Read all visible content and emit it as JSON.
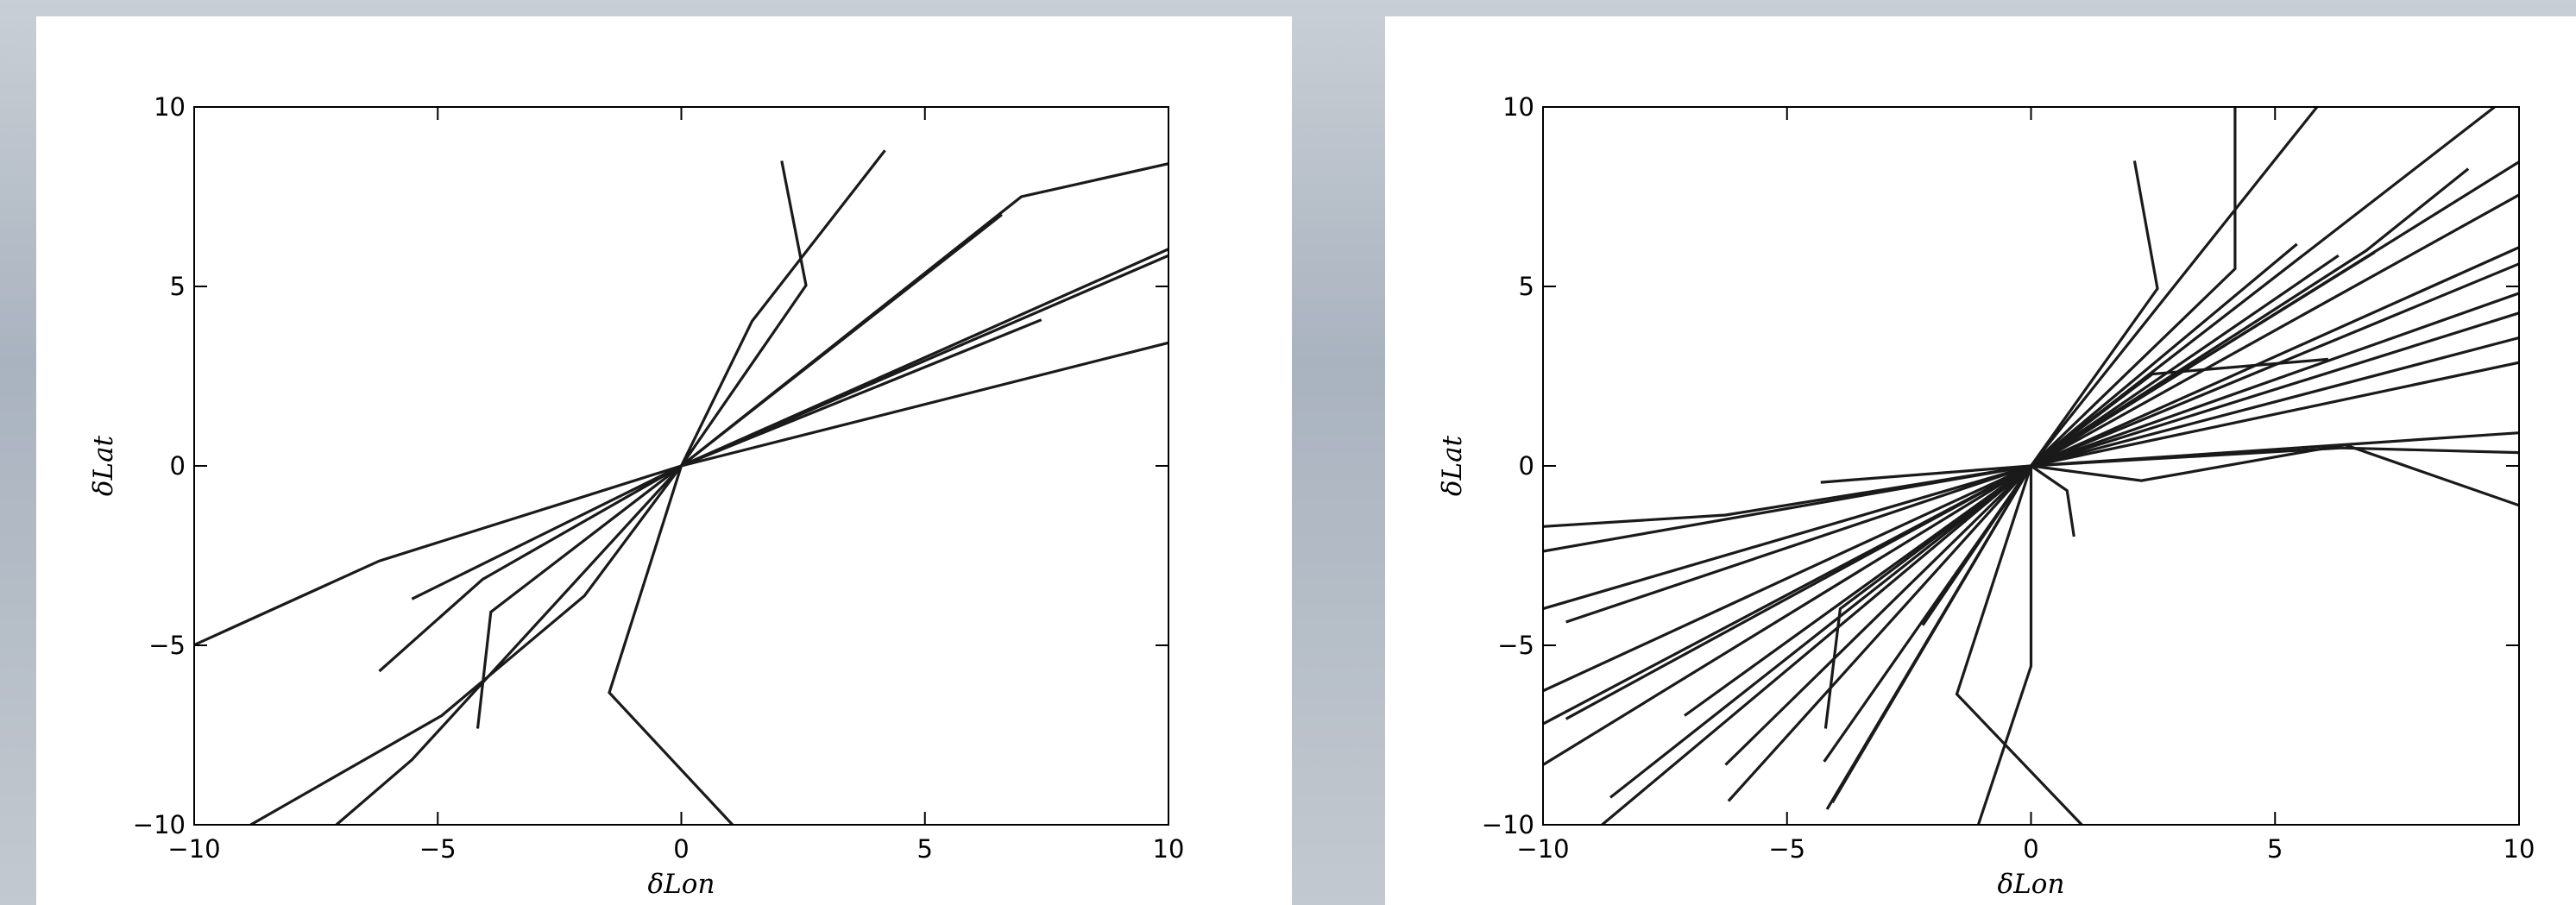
{
  "chart_data": [
    {
      "type": "line",
      "xlabel": "δLon",
      "ylabel": "δLat",
      "color": "#1a1a1a",
      "xlim": [
        -10,
        10
      ],
      "ylim": [
        -10,
        10
      ],
      "xticks": [
        {
          "value": -10,
          "label": "−10"
        },
        {
          "value": -5,
          "label": "−5"
        },
        0,
        5,
        10
      ],
      "yticks": [
        {
          "value": -10,
          "label": "−10"
        },
        {
          "value": -5,
          "label": "−5"
        },
        0,
        5,
        10
      ],
      "series": [
        {
          "x": [
            0,
            2.56,
            2.06
          ],
          "values": [
            0,
            5.03,
            8.5
          ]
        },
        {
          "x": [
            0,
            1.45,
            4.18
          ],
          "values": [
            0,
            4.03,
            8.79
          ]
        },
        {
          "x": [
            0,
            6.98,
            10
          ],
          "values": [
            0,
            7.5,
            8.42
          ]
        },
        {
          "x": [
            0,
            6.58
          ],
          "values": [
            0,
            7.0
          ]
        },
        {
          "x": [
            0,
            10
          ],
          "values": [
            0,
            6.04
          ]
        },
        {
          "x": [
            0,
            10
          ],
          "values": [
            0,
            5.86
          ]
        },
        {
          "x": [
            0,
            7.39
          ],
          "values": [
            0,
            4.07
          ]
        },
        {
          "x": [
            0,
            10
          ],
          "values": [
            0,
            3.43
          ]
        },
        {
          "x": [
            0,
            -6.2,
            -10
          ],
          "values": [
            0,
            -2.65,
            -4.99
          ]
        },
        {
          "x": [
            0,
            -5.53
          ],
          "values": [
            0,
            -3.71
          ]
        },
        {
          "x": [
            0,
            -4.08,
            -6.2
          ],
          "values": [
            0,
            -3.16,
            -5.72
          ]
        },
        {
          "x": [
            0,
            -3.91,
            -4.18
          ],
          "values": [
            0,
            -4.07,
            -7.32
          ]
        },
        {
          "x": [
            0,
            -1.99,
            -4.92,
            -8.84
          ],
          "values": [
            0,
            -3.62,
            -6.96,
            -10
          ]
        },
        {
          "x": [
            0,
            -5.53,
            -7.08
          ],
          "values": [
            0,
            -8.19,
            -10
          ]
        },
        {
          "x": [
            0,
            -1.48,
            1.05
          ],
          "values": [
            0,
            -6.32,
            -10
          ]
        }
      ]
    },
    {
      "type": "line",
      "xlabel": "δLon",
      "ylabel": "δLat",
      "color": "#1a1a1a",
      "xlim": [
        -10,
        10
      ],
      "ylim": [
        -10,
        10
      ],
      "xticks": [
        {
          "value": -10,
          "label": "−10"
        },
        {
          "value": -5,
          "label": "−5"
        },
        0,
        5,
        10
      ],
      "yticks": [
        {
          "value": -10,
          "label": "−10"
        },
        {
          "value": -5,
          "label": "−5"
        },
        0,
        5,
        10
      ],
      "series": [
        {
          "x": [
            0,
            2.59,
            2.12
          ],
          "values": [
            0,
            4.94,
            8.5
          ]
        },
        {
          "x": [
            0,
            4.18,
            4.18
          ],
          "values": [
            0,
            5.49,
            10
          ]
        },
        {
          "x": [
            0,
            4.98,
            5.86
          ],
          "values": [
            0,
            8.5,
            10
          ]
        },
        {
          "x": [
            0,
            9.5
          ],
          "values": [
            0,
            10
          ]
        },
        {
          "x": [
            0,
            10
          ],
          "values": [
            0,
            8.47
          ]
        },
        {
          "x": [
            0,
            10
          ],
          "values": [
            0,
            7.55
          ]
        },
        {
          "x": [
            0,
            10
          ],
          "values": [
            0,
            6.09
          ]
        },
        {
          "x": [
            0,
            10
          ],
          "values": [
            0,
            5.63
          ]
        },
        {
          "x": [
            0,
            10
          ],
          "values": [
            0,
            4.81
          ]
        },
        {
          "x": [
            0,
            10
          ],
          "values": [
            0,
            4.26
          ]
        },
        {
          "x": [
            0,
            10
          ],
          "values": [
            0,
            3.57
          ]
        },
        {
          "x": [
            0,
            10
          ],
          "values": [
            0,
            2.88
          ]
        },
        {
          "x": [
            0,
            6.87,
            8.96
          ],
          "values": [
            0,
            6.0,
            8.28
          ]
        },
        {
          "x": [
            0,
            6.3
          ],
          "values": [
            0,
            5.86
          ]
        },
        {
          "x": [
            0,
            5.45
          ],
          "values": [
            0,
            6.18
          ]
        },
        {
          "x": [
            0,
            7.04
          ],
          "values": [
            0,
            5.95
          ]
        },
        {
          "x": [
            0,
            2.49,
            6.09
          ],
          "values": [
            0,
            2.56,
            2.97
          ]
        },
        {
          "x": [
            0,
            10
          ],
          "values": [
            0,
            0.92
          ]
        },
        {
          "x": [
            0,
            6.36,
            10
          ],
          "values": [
            0,
            0.5,
            0.37
          ]
        },
        {
          "x": [
            0,
            2.26,
            6.43,
            10
          ],
          "values": [
            0,
            -0.41,
            0.59,
            -1.1
          ]
        },
        {
          "x": [
            0,
            0.74,
            0.88
          ],
          "values": [
            0,
            -0.69,
            -1.97
          ]
        },
        {
          "x": [
            0,
            0,
            -1.08
          ],
          "values": [
            0,
            -5.58,
            -10
          ]
        },
        {
          "x": [
            0,
            -1.52,
            1.04
          ],
          "values": [
            0,
            -6.36,
            -10
          ]
        },
        {
          "x": [
            0,
            -4.31
          ],
          "values": [
            0,
            -0.46
          ]
        },
        {
          "x": [
            0,
            -6.26,
            -10
          ],
          "values": [
            0,
            -1.37,
            -1.69
          ]
        },
        {
          "x": [
            0,
            -10
          ],
          "values": [
            0,
            -2.38
          ]
        },
        {
          "x": [
            0,
            -10
          ],
          "values": [
            0,
            -3.98
          ]
        },
        {
          "x": [
            0,
            -9.53
          ],
          "values": [
            0,
            -4.35
          ]
        },
        {
          "x": [
            0,
            -10
          ],
          "values": [
            0,
            -6.27
          ]
        },
        {
          "x": [
            0,
            -10
          ],
          "values": [
            0,
            -7.19
          ]
        },
        {
          "x": [
            0,
            -9.53
          ],
          "values": [
            0,
            -7.05
          ]
        },
        {
          "x": [
            0,
            -10
          ],
          "values": [
            0,
            -8.33
          ]
        },
        {
          "x": [
            0,
            -8.62
          ],
          "values": [
            0,
            -9.24
          ]
        },
        {
          "x": [
            0,
            -6.26
          ],
          "values": [
            0,
            -8.33
          ]
        },
        {
          "x": [
            0,
            -7.1
          ],
          "values": [
            0,
            -6.96
          ]
        },
        {
          "x": [
            0,
            -6.2
          ],
          "values": [
            0,
            -9.34
          ]
        },
        {
          "x": [
            0,
            -4.24
          ],
          "values": [
            0,
            -8.24
          ]
        },
        {
          "x": [
            0,
            -3.91,
            -4.21
          ],
          "values": [
            0,
            -3.98,
            -7.32
          ]
        },
        {
          "x": [
            0,
            -4.18
          ],
          "values": [
            0,
            -9.57
          ]
        },
        {
          "x": [
            0,
            -4.07
          ],
          "values": [
            0,
            -9.38
          ]
        },
        {
          "x": [
            0,
            -8.79
          ],
          "values": [
            0,
            -10
          ]
        },
        {
          "x": [
            0,
            -2.22
          ],
          "values": [
            0,
            -4.44
          ]
        }
      ]
    }
  ]
}
